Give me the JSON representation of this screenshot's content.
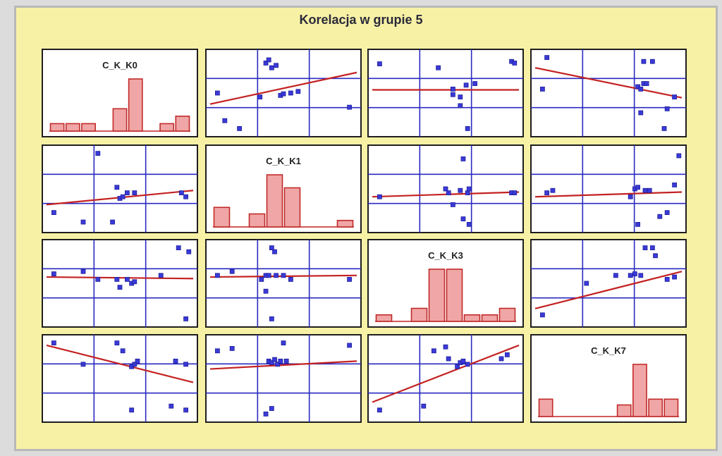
{
  "title": "Korelacja w grupie 5",
  "colors": {
    "background": "#f7f1a6",
    "cell": "#ffffff",
    "grid": "#2a2ac0",
    "points": "#3a3ad8",
    "fit_line": "#c42222",
    "bars": "#f0a6a6"
  },
  "chart_data": {
    "type": "scatter",
    "subtype": "scatterplot-matrix",
    "variables": [
      "C_K_K0",
      "C_K_K1",
      "C_K_K3",
      "C_K_K7"
    ],
    "diagonal": [
      {
        "name": "C_K_K0",
        "type": "bar",
        "values": [
          1,
          1,
          1,
          0,
          3,
          7,
          0,
          1,
          2
        ]
      },
      {
        "name": "C_K_K1",
        "type": "bar",
        "values": [
          3,
          0,
          2,
          8,
          6,
          0,
          0,
          1
        ]
      },
      {
        "name": "C_K_K3",
        "type": "bar",
        "values": [
          1,
          0,
          2,
          8,
          8,
          1,
          1,
          2
        ]
      },
      {
        "name": "C_K_K7",
        "type": "bar",
        "values": [
          3,
          0,
          0,
          0,
          0,
          2,
          9,
          3,
          3
        ]
      }
    ],
    "scatter": [
      {
        "row": 0,
        "col": 1,
        "fit": [
          0.36,
          0.76
        ],
        "points": [
          [
            0.05,
            0.5
          ],
          [
            0.1,
            0.15
          ],
          [
            0.34,
            0.45
          ],
          [
            0.38,
            0.88
          ],
          [
            0.4,
            0.92
          ],
          [
            0.42,
            0.82
          ],
          [
            0.45,
            0.85
          ],
          [
            0.48,
            0.47
          ],
          [
            0.5,
            0.49
          ],
          [
            0.55,
            0.5
          ],
          [
            0.6,
            0.52
          ],
          [
            0.95,
            0.32
          ],
          [
            0.2,
            0.05
          ]
        ]
      },
      {
        "row": 0,
        "col": 2,
        "fit": [
          0.54,
          0.54
        ],
        "points": [
          [
            0.05,
            0.87
          ],
          [
            0.45,
            0.82
          ],
          [
            0.55,
            0.48
          ],
          [
            0.55,
            0.55
          ],
          [
            0.6,
            0.34
          ],
          [
            0.6,
            0.45
          ],
          [
            0.64,
            0.6
          ],
          [
            0.7,
            0.62
          ],
          [
            0.95,
            0.9
          ],
          [
            0.97,
            0.88
          ],
          [
            0.65,
            0.05
          ]
        ]
      },
      {
        "row": 0,
        "col": 3,
        "fit": [
          0.82,
          0.44
        ],
        "points": [
          [
            0.08,
            0.95
          ],
          [
            0.05,
            0.55
          ],
          [
            0.7,
            0.58
          ],
          [
            0.72,
            0.55
          ],
          [
            0.74,
            0.62
          ],
          [
            0.76,
            0.62
          ],
          [
            0.74,
            0.9
          ],
          [
            0.8,
            0.9
          ],
          [
            0.72,
            0.25
          ],
          [
            0.95,
            0.45
          ],
          [
            0.9,
            0.3
          ],
          [
            0.88,
            0.05
          ]
        ]
      },
      {
        "row": 1,
        "col": 0,
        "fit": [
          0.3,
          0.48
        ],
        "points": [
          [
            0.35,
            0.95
          ],
          [
            0.05,
            0.2
          ],
          [
            0.25,
            0.08
          ],
          [
            0.48,
            0.52
          ],
          [
            0.5,
            0.38
          ],
          [
            0.52,
            0.4
          ],
          [
            0.55,
            0.45
          ],
          [
            0.6,
            0.45
          ],
          [
            0.92,
            0.45
          ],
          [
            0.95,
            0.4
          ],
          [
            0.45,
            0.08
          ]
        ]
      },
      {
        "row": 1,
        "col": 2,
        "fit": [
          0.4,
          0.46
        ],
        "points": [
          [
            0.05,
            0.4
          ],
          [
            0.5,
            0.5
          ],
          [
            0.52,
            0.45
          ],
          [
            0.55,
            0.3
          ],
          [
            0.6,
            0.48
          ],
          [
            0.65,
            0.45
          ],
          [
            0.66,
            0.5
          ],
          [
            0.62,
            0.12
          ],
          [
            0.66,
            0.05
          ],
          [
            0.62,
            0.88
          ],
          [
            0.95,
            0.45
          ],
          [
            0.97,
            0.45
          ]
        ]
      },
      {
        "row": 1,
        "col": 3,
        "fit": [
          0.4,
          0.46
        ],
        "points": [
          [
            0.08,
            0.45
          ],
          [
            0.12,
            0.48
          ],
          [
            0.65,
            0.4
          ],
          [
            0.68,
            0.5
          ],
          [
            0.7,
            0.52
          ],
          [
            0.75,
            0.48
          ],
          [
            0.78,
            0.48
          ],
          [
            0.7,
            0.05
          ],
          [
            0.85,
            0.15
          ],
          [
            0.9,
            0.2
          ],
          [
            0.95,
            0.55
          ],
          [
            0.98,
            0.92
          ]
        ]
      },
      {
        "row": 2,
        "col": 0,
        "fit": [
          0.58,
          0.56
        ],
        "points": [
          [
            0.05,
            0.62
          ],
          [
            0.25,
            0.65
          ],
          [
            0.35,
            0.55
          ],
          [
            0.48,
            0.55
          ],
          [
            0.5,
            0.45
          ],
          [
            0.55,
            0.55
          ],
          [
            0.58,
            0.5
          ],
          [
            0.6,
            0.52
          ],
          [
            0.78,
            0.6
          ],
          [
            0.9,
            0.95
          ],
          [
            0.97,
            0.9
          ],
          [
            0.95,
            0.05
          ]
        ]
      },
      {
        "row": 2,
        "col": 1,
        "fit": [
          0.58,
          0.6
        ],
        "points": [
          [
            0.05,
            0.6
          ],
          [
            0.15,
            0.65
          ],
          [
            0.35,
            0.55
          ],
          [
            0.38,
            0.6
          ],
          [
            0.4,
            0.6
          ],
          [
            0.42,
            0.95
          ],
          [
            0.44,
            0.9
          ],
          [
            0.45,
            0.6
          ],
          [
            0.5,
            0.6
          ],
          [
            0.55,
            0.55
          ],
          [
            0.38,
            0.4
          ],
          [
            0.42,
            0.05
          ],
          [
            0.95,
            0.55
          ]
        ]
      },
      {
        "row": 2,
        "col": 3,
        "fit": [
          0.18,
          0.65
        ],
        "points": [
          [
            0.05,
            0.1
          ],
          [
            0.35,
            0.5
          ],
          [
            0.65,
            0.6
          ],
          [
            0.68,
            0.62
          ],
          [
            0.72,
            0.6
          ],
          [
            0.75,
            0.95
          ],
          [
            0.8,
            0.95
          ],
          [
            0.82,
            0.85
          ],
          [
            0.9,
            0.55
          ],
          [
            0.95,
            0.58
          ],
          [
            0.55,
            0.6
          ]
        ]
      },
      {
        "row": 3,
        "col": 0,
        "fit": [
          0.92,
          0.45
        ],
        "points": [
          [
            0.05,
            0.95
          ],
          [
            0.25,
            0.68
          ],
          [
            0.48,
            0.95
          ],
          [
            0.52,
            0.85
          ],
          [
            0.58,
            0.65
          ],
          [
            0.6,
            0.68
          ],
          [
            0.62,
            0.72
          ],
          [
            0.88,
            0.72
          ],
          [
            0.95,
            0.68
          ],
          [
            0.58,
            0.1
          ],
          [
            0.85,
            0.15
          ],
          [
            0.95,
            0.1
          ]
        ]
      },
      {
        "row": 3,
        "col": 1,
        "fit": [
          0.62,
          0.72
        ],
        "points": [
          [
            0.05,
            0.85
          ],
          [
            0.15,
            0.88
          ],
          [
            0.4,
            0.72
          ],
          [
            0.42,
            0.7
          ],
          [
            0.44,
            0.74
          ],
          [
            0.46,
            0.68
          ],
          [
            0.48,
            0.72
          ],
          [
            0.5,
            0.95
          ],
          [
            0.52,
            0.72
          ],
          [
            0.38,
            0.05
          ],
          [
            0.42,
            0.12
          ],
          [
            0.95,
            0.92
          ]
        ]
      },
      {
        "row": 3,
        "col": 2,
        "fit": [
          0.2,
          0.92
        ],
        "points": [
          [
            0.05,
            0.1
          ],
          [
            0.35,
            0.15
          ],
          [
            0.42,
            0.85
          ],
          [
            0.5,
            0.9
          ],
          [
            0.52,
            0.75
          ],
          [
            0.58,
            0.65
          ],
          [
            0.6,
            0.7
          ],
          [
            0.62,
            0.72
          ],
          [
            0.65,
            0.68
          ],
          [
            0.88,
            0.75
          ],
          [
            0.92,
            0.8
          ]
        ]
      }
    ]
  }
}
